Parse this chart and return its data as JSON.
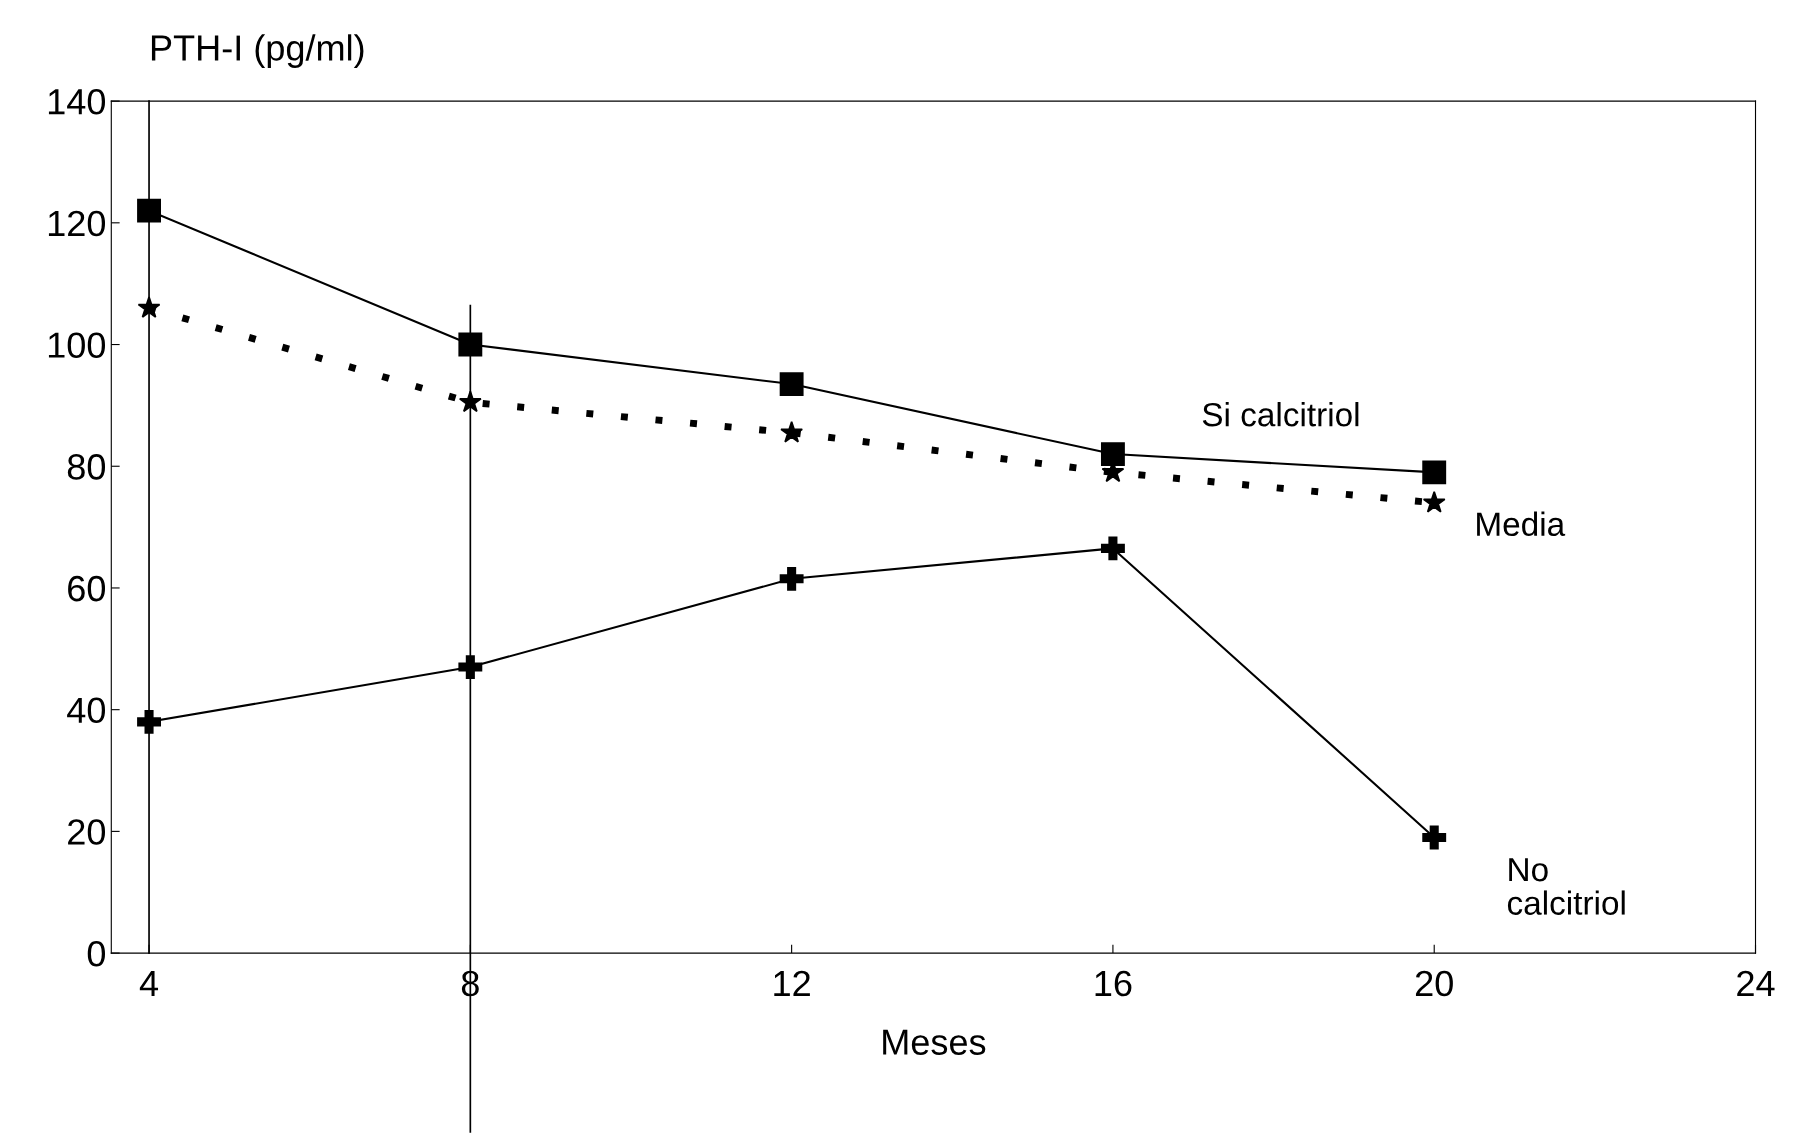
{
  "chart_data": {
    "type": "line",
    "xlabel": "Meses",
    "ylabel": "PTH-I (pg/ml)",
    "x": [
      4,
      8,
      12,
      16,
      20
    ],
    "series": [
      {
        "name": "Si calcitriol",
        "color": "#000000",
        "marker": "square",
        "line_style": "solid",
        "values": [
          122,
          100,
          93.5,
          82,
          79
        ]
      },
      {
        "name": "Media",
        "color": "#000000",
        "marker": "star",
        "line_style": "dotted",
        "values": [
          106,
          90.5,
          85.5,
          79,
          74
        ]
      },
      {
        "name": "No\ncalcitriol",
        "color": "#000000",
        "marker": "cross",
        "line_style": "solid",
        "values": [
          38,
          47,
          61.5,
          66.5,
          19
        ]
      }
    ],
    "xlim": [
      3.53,
      24
    ],
    "xticks": [
      4,
      8,
      12,
      16,
      20,
      24
    ],
    "ylim": [
      0,
      140
    ],
    "yticks": [
      0,
      20,
      40,
      60,
      80,
      100,
      120,
      140
    ],
    "ref_lines": [
      {
        "axis": "x",
        "value": 4
      },
      {
        "axis": "x",
        "value": 8
      }
    ],
    "grid": false,
    "legend": false
  }
}
